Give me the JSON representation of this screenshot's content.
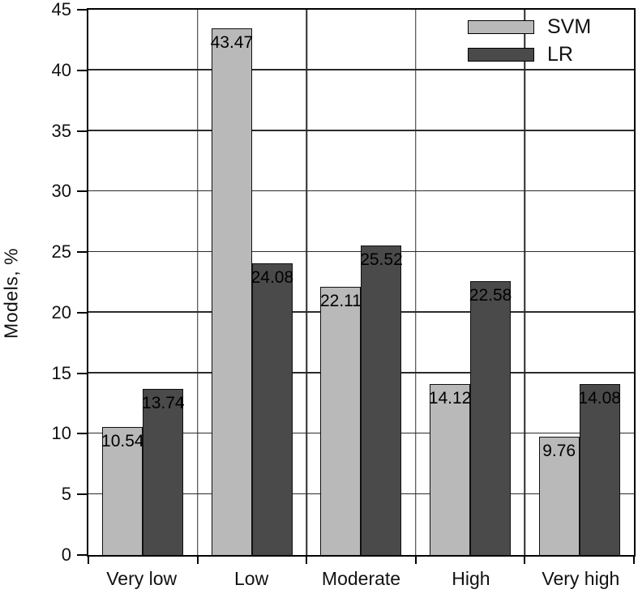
{
  "chart_data": {
    "type": "bar",
    "title": "",
    "xlabel": "",
    "ylabel": "Models, %",
    "categories": [
      "Very low",
      "Low",
      "Moderate",
      "High",
      "Very high"
    ],
    "series": [
      {
        "name": "SVM",
        "color": "#b9b9b9",
        "values": [
          10.54,
          43.47,
          22.11,
          14.12,
          9.76
        ]
      },
      {
        "name": "LR",
        "color": "#4a4a4a",
        "values": [
          13.74,
          24.08,
          25.52,
          22.58,
          14.08
        ]
      }
    ],
    "ylim": [
      0,
      45
    ],
    "ytick_step": 5,
    "grid": true,
    "legend_position": "top-right",
    "value_labels": true,
    "value_label_decimals": 2,
    "colors": {
      "axis": "#000000",
      "gridline": "#2b2b2b",
      "text": "#111111",
      "background": "#ffffff"
    }
  }
}
